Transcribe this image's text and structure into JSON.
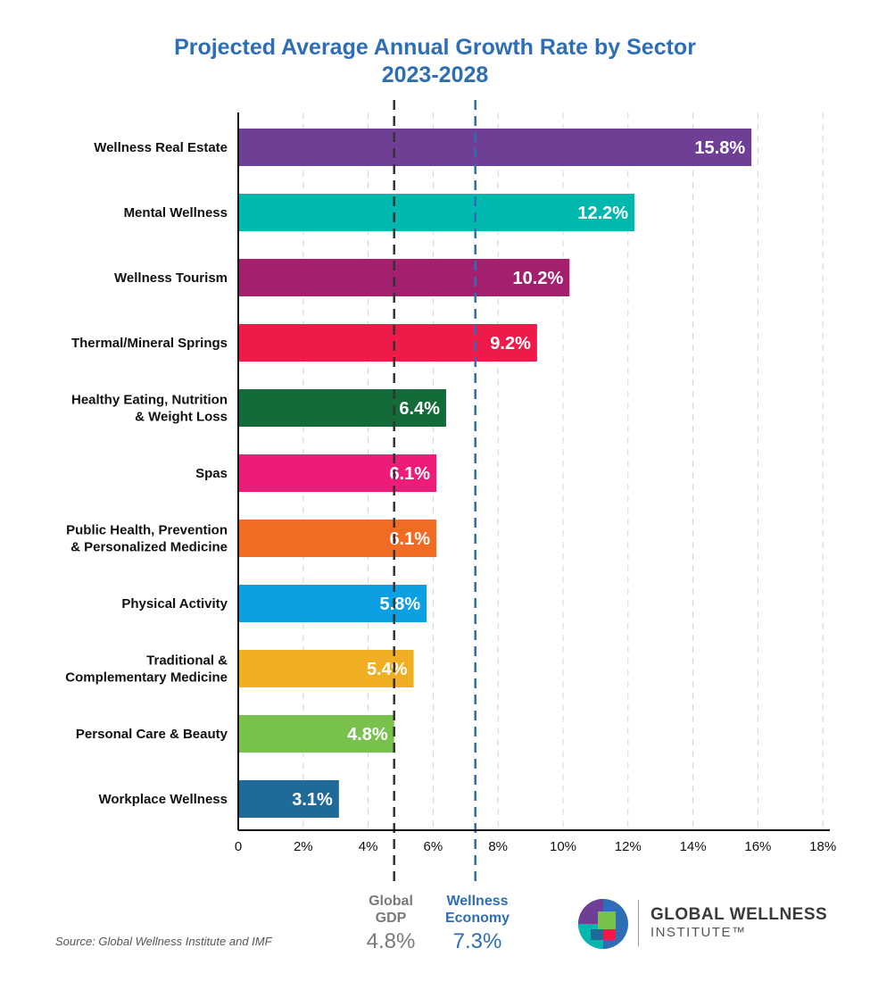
{
  "title_line1": "Projected Average Annual Growth Rate by Sector",
  "title_line2": "2023-2028",
  "chart_data": {
    "type": "bar",
    "orientation": "horizontal",
    "categories": [
      [
        "Wellness Real Estate"
      ],
      [
        "Mental Wellness"
      ],
      [
        "Wellness Tourism"
      ],
      [
        "Thermal/Mineral Springs"
      ],
      [
        "Healthy Eating, Nutrition",
        "& Weight Loss"
      ],
      [
        "Spas"
      ],
      [
        "Public Health, Prevention",
        "& Personalized Medicine"
      ],
      [
        "Physical Activity"
      ],
      [
        "Traditional &",
        "Complementary Medicine"
      ],
      [
        "Personal Care & Beauty"
      ],
      [
        "Workplace Wellness"
      ]
    ],
    "values": [
      15.8,
      12.2,
      10.2,
      9.2,
      6.4,
      6.1,
      6.1,
      5.8,
      5.4,
      4.8,
      3.1
    ],
    "value_labels": [
      "15.8%",
      "12.2%",
      "10.2%",
      "9.2%",
      "6.4%",
      "6.1%",
      "6.1%",
      "5.8%",
      "5.4%",
      "4.8%",
      "3.1%"
    ],
    "colors": [
      "#6f3f96",
      "#00b8ad",
      "#a3206f",
      "#ee1b4a",
      "#146b3a",
      "#ec1c78",
      "#f26b22",
      "#0ca0e2",
      "#f0ae22",
      "#79c14d",
      "#1e6a98"
    ],
    "x_ticks": [
      0,
      2,
      4,
      6,
      8,
      10,
      12,
      14,
      16,
      18
    ],
    "x_tick_labels": [
      "0",
      "2%",
      "4%",
      "6%",
      "8%",
      "10%",
      "12%",
      "14%",
      "16%",
      "18%"
    ],
    "xlim": [
      0,
      18
    ],
    "grid": "vertical dashed",
    "reference_lines": [
      {
        "value": 4.8,
        "label": [
          "Global",
          "GDP"
        ],
        "value_label": "4.8%",
        "color": "#333333"
      },
      {
        "value": 7.3,
        "label": [
          "Wellness",
          "Economy"
        ],
        "value_label": "7.3%",
        "color": "#2e6eb5"
      }
    ]
  },
  "source": "Source: Global Wellness Institute and IMF",
  "logo": {
    "line1": "GLOBAL WELLNESS",
    "line2": "INSTITUTE™"
  }
}
